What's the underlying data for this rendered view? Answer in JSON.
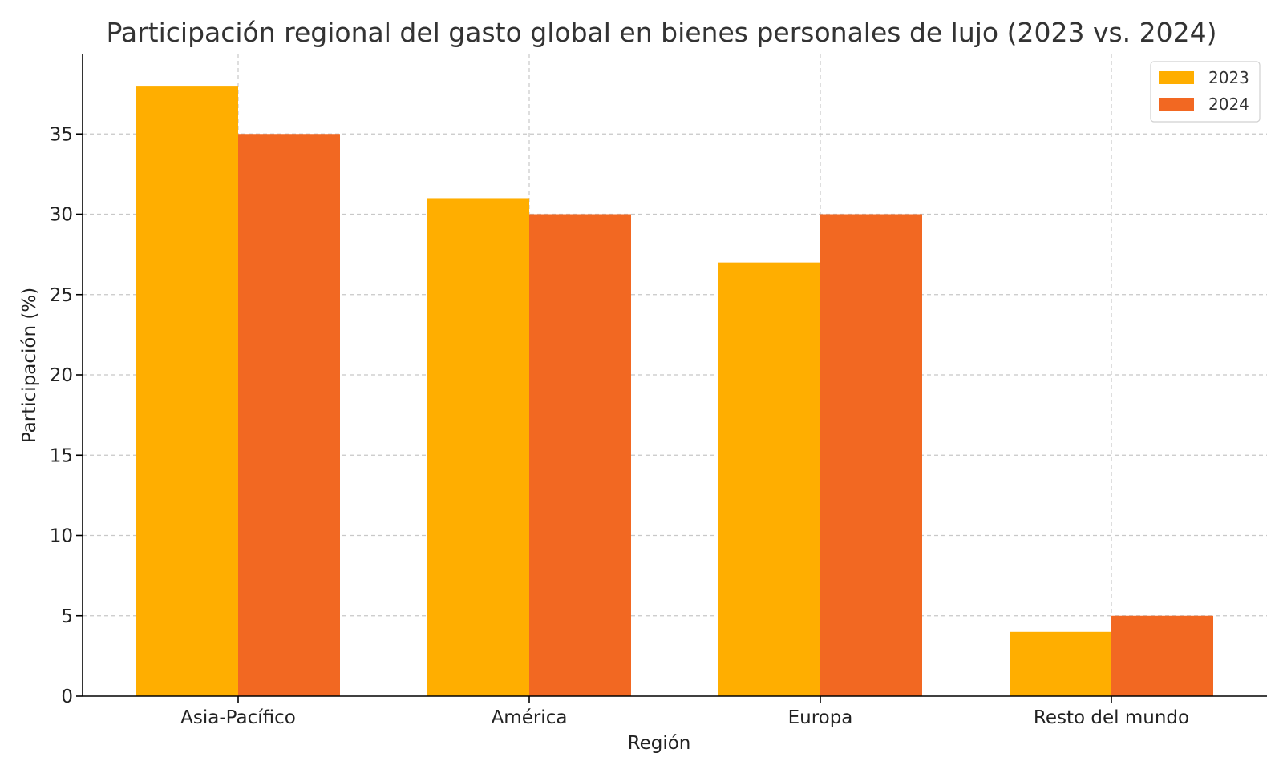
{
  "chart_data": {
    "type": "bar",
    "title": "Participación regional del gasto global en bienes personales de lujo (2023 vs. 2024)",
    "xlabel": "Región",
    "ylabel": "Participación (%)",
    "categories": [
      "Asia-Pacífico",
      "América",
      "Europa",
      "Resto del mundo"
    ],
    "series": [
      {
        "name": "2023",
        "color": "#FFAE00",
        "values": [
          38,
          31,
          27,
          4
        ]
      },
      {
        "name": "2024",
        "color": "#F26822",
        "values": [
          35,
          30,
          30,
          5
        ]
      }
    ],
    "ylim": [
      0,
      40
    ],
    "yticks": [
      0,
      5,
      10,
      15,
      20,
      25,
      30,
      35
    ],
    "grid": true,
    "legend_position": "top-right"
  }
}
